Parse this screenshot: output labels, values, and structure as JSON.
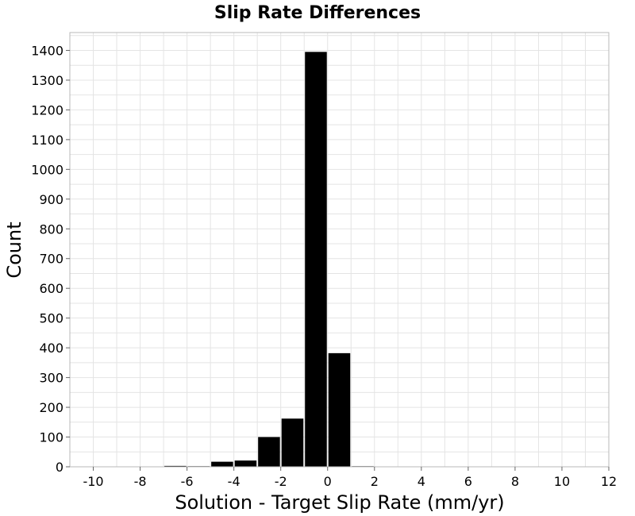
{
  "chart_data": {
    "type": "bar",
    "title": "Slip Rate Differences",
    "xlabel": "Solution - Target Slip Rate (mm/yr)",
    "ylabel": "Count",
    "xlim": [
      -11,
      12
    ],
    "ylim": [
      0,
      1460
    ],
    "xticks": [
      -10,
      -8,
      -6,
      -4,
      -2,
      0,
      2,
      4,
      6,
      8,
      10,
      12
    ],
    "xtick_labels": [
      "-10",
      "-8",
      "-6",
      "-4",
      "-2",
      "0",
      "2",
      "4",
      "6",
      "8",
      "10",
      "12"
    ],
    "yticks": [
      0,
      100,
      200,
      300,
      400,
      500,
      600,
      700,
      800,
      900,
      1000,
      1100,
      1200,
      1300,
      1400
    ],
    "ytick_labels": [
      "0",
      "100",
      "200",
      "300",
      "400",
      "500",
      "600",
      "700",
      "800",
      "900",
      "1000",
      "1100",
      "1200",
      "1300",
      "1400"
    ],
    "bin_width": 1,
    "bins": [
      {
        "center": -7.5,
        "value": 1
      },
      {
        "center": -6.5,
        "value": 3
      },
      {
        "center": -5.5,
        "value": 2
      },
      {
        "center": -4.5,
        "value": 17
      },
      {
        "center": -3.5,
        "value": 21
      },
      {
        "center": -2.5,
        "value": 100
      },
      {
        "center": -1.5,
        "value": 162
      },
      {
        "center": -0.5,
        "value": 1395
      },
      {
        "center": 0.5,
        "value": 382
      },
      {
        "center": 1.5,
        "value": 2
      }
    ],
    "bar_color": "#000000",
    "grid": true
  }
}
